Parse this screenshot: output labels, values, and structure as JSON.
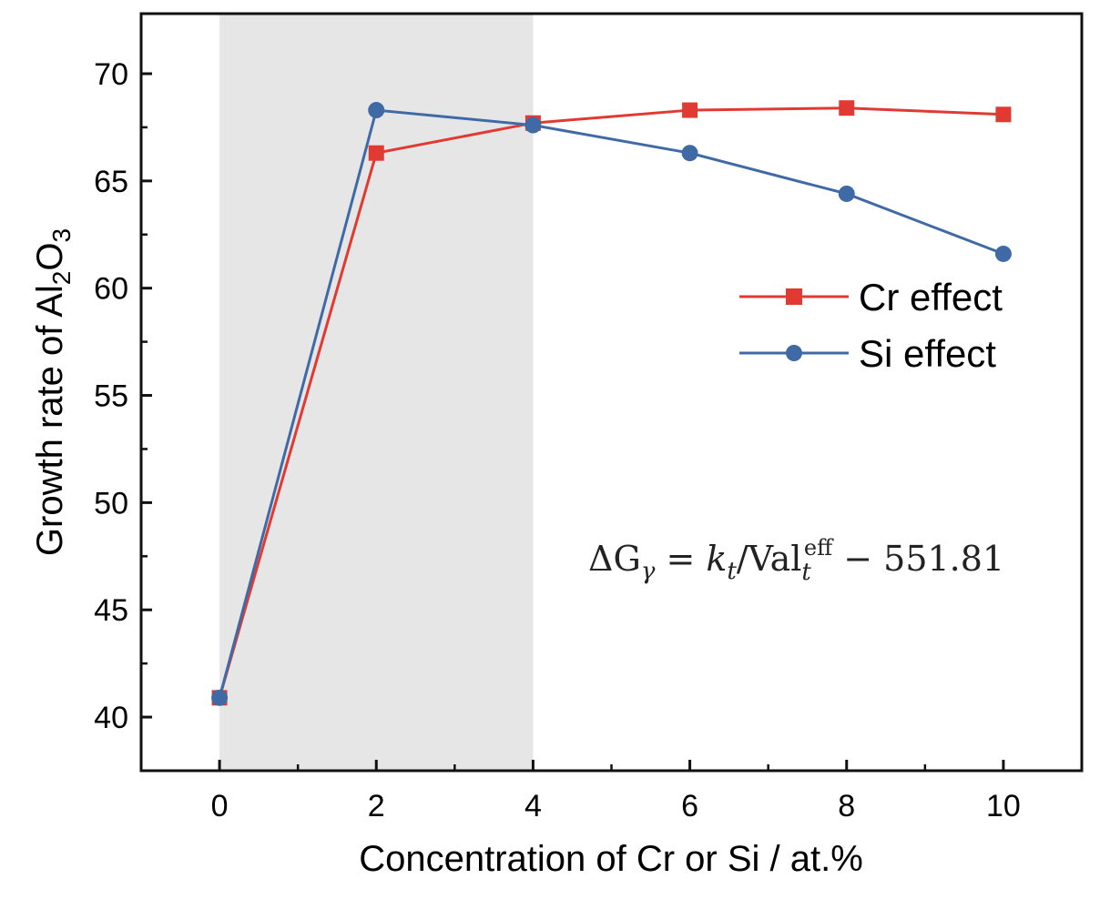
{
  "chart_data": {
    "type": "line",
    "xlabel": "Concentration of Cr or Si / at.%",
    "ylabel": {
      "prefix": "Growth rate of Al",
      "sub1": "2",
      "mid": "O",
      "sub2": "3"
    },
    "xlim": [
      -1,
      11
    ],
    "ylim": [
      37.5,
      72.8
    ],
    "x_ticks": [
      0,
      2,
      4,
      6,
      8,
      10
    ],
    "y_ticks": [
      40,
      45,
      50,
      55,
      60,
      65,
      70
    ],
    "shaded_region": {
      "x_from": 0,
      "x_to": 4,
      "color": "#e6e6e6"
    },
    "series": [
      {
        "name": "Cr effect",
        "color": "#e03a33",
        "marker": "square",
        "x": [
          0,
          2,
          4,
          6,
          8,
          10
        ],
        "y": [
          40.9,
          66.3,
          67.7,
          68.3,
          68.4,
          68.1
        ]
      },
      {
        "name": "Si effect",
        "color": "#3f6aa6",
        "marker": "circle",
        "x": [
          0,
          2,
          4,
          6,
          8,
          10
        ],
        "y": [
          40.9,
          68.3,
          67.6,
          66.3,
          64.4,
          61.6
        ]
      }
    ],
    "legend_position": "right",
    "annotation": {
      "delta": "ΔG",
      "delta_sub": "γ",
      "eq": " = ",
      "k": "k",
      "k_sub": "t",
      "slash": "/Val",
      "val_sub": "t",
      "val_sup": "eff",
      "tail": " − 551.81"
    }
  }
}
